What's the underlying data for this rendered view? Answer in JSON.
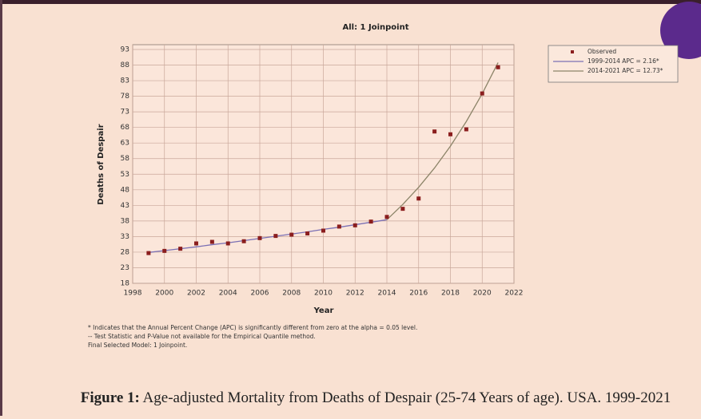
{
  "chart_data": {
    "type": "line",
    "title": "All: 1 Joinpoint",
    "x_label": "Year",
    "y_label": "Deaths of Despair",
    "xlim": [
      1998,
      2022
    ],
    "xticks": [
      1998,
      2000,
      2002,
      2004,
      2006,
      2008,
      2010,
      2012,
      2014,
      2016,
      2018,
      2020,
      2022
    ],
    "ylim": [
      18,
      93
    ],
    "yticks": [
      18,
      23,
      28,
      33,
      38,
      43,
      48,
      53,
      58,
      63,
      68,
      73,
      78,
      83,
      88,
      93
    ],
    "grid": true,
    "legend": "outside-top-right",
    "series": [
      {
        "name": "Observed",
        "mode": "markers",
        "color": "#8b1e1e",
        "x": [
          1999,
          2000,
          2001,
          2002,
          2003,
          2004,
          2005,
          2006,
          2007,
          2008,
          2009,
          2010,
          2011,
          2012,
          2013,
          2014,
          2015,
          2016,
          2017,
          2018,
          2019,
          2020,
          2021
        ],
        "values": [
          27.7,
          28.4,
          29.1,
          30.8,
          31.3,
          30.8,
          31.5,
          32.5,
          33.2,
          33.6,
          34.0,
          34.9,
          36.2,
          36.6,
          37.8,
          39.3,
          41.9,
          45.2,
          66.7,
          65.8,
          67.4,
          78.9,
          87.3
        ]
      },
      {
        "name": "1999-2014 APC  =  2.16*",
        "mode": "line",
        "color": "#7b70b4",
        "x": [
          1999,
          2000,
          2001,
          2002,
          2003,
          2004,
          2005,
          2006,
          2007,
          2008,
          2009,
          2010,
          2011,
          2012,
          2013,
          2014
        ],
        "values": [
          27.9,
          28.5,
          29.1,
          29.7,
          30.4,
          31.0,
          31.7,
          32.4,
          33.1,
          33.8,
          34.5,
          35.3,
          36.0,
          36.8,
          37.6,
          38.4
        ]
      },
      {
        "name": "2014-2021 APC  =  12.73*",
        "mode": "line",
        "color": "#8c8468",
        "x": [
          2014,
          2015,
          2016,
          2017,
          2018,
          2019,
          2020,
          2021
        ],
        "values": [
          38.4,
          43.3,
          48.8,
          55.0,
          62.0,
          69.9,
          78.8,
          88.8
        ]
      }
    ],
    "notes": [
      "* Indicates that the Annual Percent Change (APC) is significantly different from zero at the alpha = 0.05 level.",
      " -- Test Statistic and P-Value not available for the Empirical Quantile method.",
      "Final Selected Model: 1 Joinpoint."
    ]
  },
  "caption": {
    "label": "Figure 1:",
    "text": " Age-adjusted Mortality from Deaths of Despair (25-74 Years of age). USA. 1999-2021"
  }
}
